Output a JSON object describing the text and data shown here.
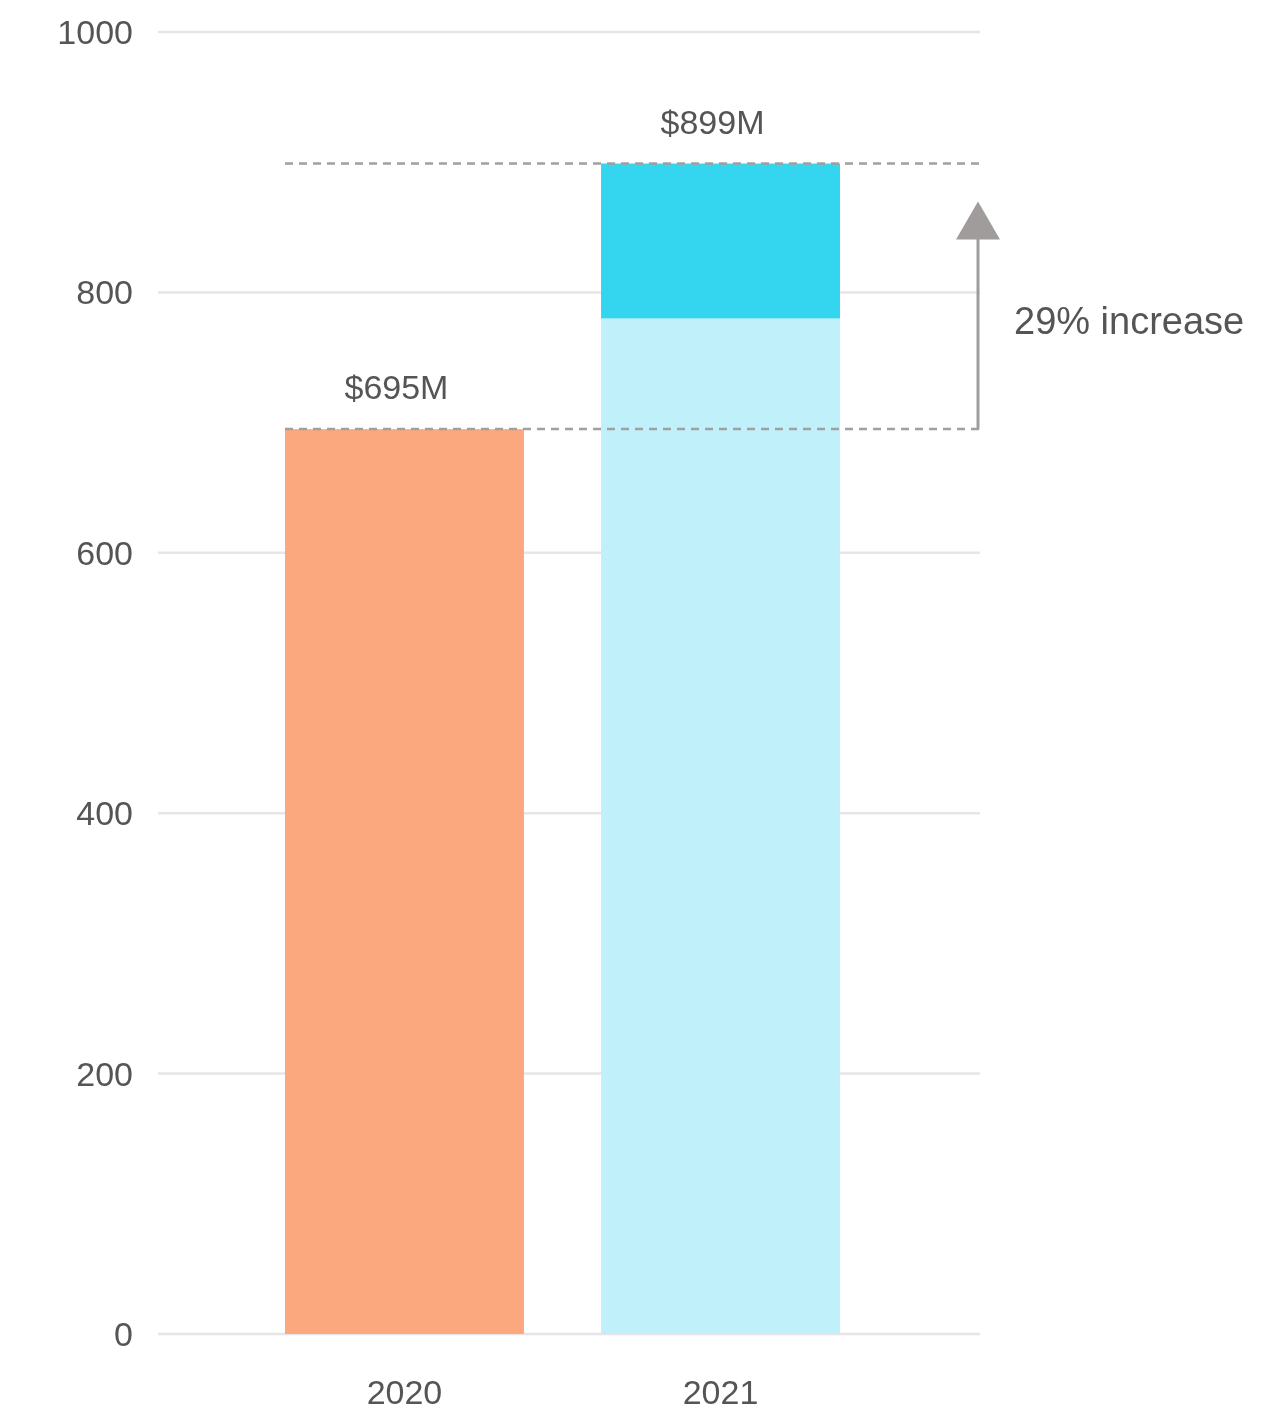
{
  "chart_data": {
    "type": "bar",
    "categories": [
      "2020",
      "2021"
    ],
    "stacked": true,
    "series": [
      {
        "colors": [
          "#fba87e",
          "#c0f0fa"
        ],
        "values": [
          695,
          780
        ]
      },
      {
        "color": "#33d6ee",
        "values": [
          null,
          119
        ]
      }
    ],
    "totals": [
      "$695M",
      "$899M"
    ],
    "ylim": [
      0,
      1000
    ],
    "yticks": [
      0,
      200,
      400,
      600,
      800,
      1000
    ],
    "grid": "y",
    "ref_lines": [
      {
        "axis": "y",
        "value": 899,
        "color": "#a0a0a0",
        "line_style": "dashed"
      },
      {
        "axis": "y",
        "value": 695,
        "color": "#a0a0a0",
        "line_style": "dashed"
      }
    ],
    "annotations": [
      "29% increase"
    ]
  }
}
